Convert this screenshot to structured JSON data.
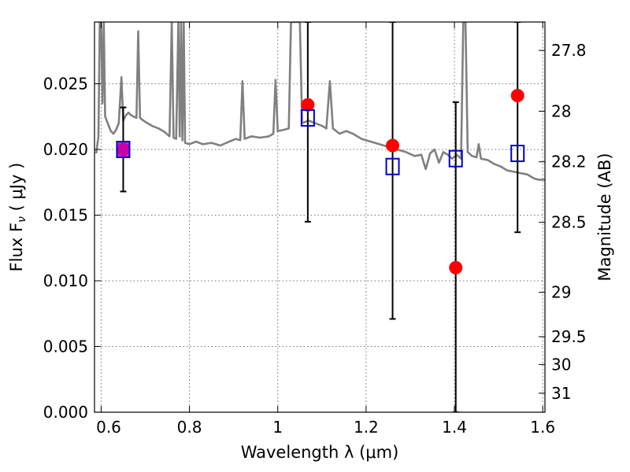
{
  "chart_data": {
    "type": "scatter",
    "xlabel": "Wavelength  λ (μm)",
    "ylabel": "Flux  F",
    "ylabel_sub": "ν",
    "ylabel_unit": "  ( μJy )",
    "y2label": "Magnitude (AB)",
    "xlim": [
      0.585,
      1.605
    ],
    "ylim": [
      0.0,
      0.0297
    ],
    "x_ticks": [
      {
        "value": 0.6,
        "label": ""
      },
      {
        "value": 0.8,
        "label": "0.8"
      },
      {
        "value": 1.0,
        "label": "1"
      },
      {
        "value": 1.2,
        "label": "1.2"
      },
      {
        "value": 1.4,
        "label": "1.4"
      },
      {
        "value": 1.6,
        "label": "1.6"
      }
    ],
    "y_ticks": [
      {
        "value": 0.0,
        "label": "0.000"
      },
      {
        "value": 0.005,
        "label": "0.005"
      },
      {
        "value": 0.01,
        "label": "0.010"
      },
      {
        "value": 0.015,
        "label": "0.015"
      },
      {
        "value": 0.02,
        "label": "0.020"
      },
      {
        "value": 0.025,
        "label": "0.025"
      }
    ],
    "y2_ticks": [
      {
        "flux": 0.02754,
        "label": "27.8"
      },
      {
        "flux": 0.02291,
        "label": "28"
      },
      {
        "flux": 0.01906,
        "label": "28.2"
      },
      {
        "flux": 0.01445,
        "label": "28.5"
      },
      {
        "flux": 0.00912,
        "label": "29"
      },
      {
        "flux": 0.00575,
        "label": "29.5"
      },
      {
        "flux": 0.00363,
        "label": "30"
      },
      {
        "flux": 0.00145,
        "label": "31"
      }
    ],
    "grid": true,
    "series": [
      {
        "kind": "model_spectrum",
        "color": "#808080",
        "points": [
          [
            0.589,
            0.0197
          ],
          [
            0.594,
            0.021
          ],
          [
            0.597,
            0.0297
          ],
          [
            0.6,
            0.0297
          ],
          [
            0.603,
            0.0235
          ],
          [
            0.606,
            0.0297
          ],
          [
            0.609,
            0.0225
          ],
          [
            0.615,
            0.022
          ],
          [
            0.622,
            0.0214
          ],
          [
            0.628,
            0.0212
          ],
          [
            0.634,
            0.0215
          ],
          [
            0.64,
            0.022
          ],
          [
            0.646,
            0.0255
          ],
          [
            0.65,
            0.0222
          ],
          [
            0.656,
            0.0226
          ],
          [
            0.662,
            0.0228
          ],
          [
            0.668,
            0.0226
          ],
          [
            0.674,
            0.0225
          ],
          [
            0.68,
            0.0224
          ],
          [
            0.684,
            0.029
          ],
          [
            0.688,
            0.0224
          ],
          [
            0.7,
            0.0221
          ],
          [
            0.715,
            0.0218
          ],
          [
            0.73,
            0.0216
          ],
          [
            0.745,
            0.0213
          ],
          [
            0.755,
            0.021
          ],
          [
            0.76,
            0.0297
          ],
          [
            0.764,
            0.0209
          ],
          [
            0.77,
            0.0208
          ],
          [
            0.775,
            0.0297
          ],
          [
            0.778,
            0.021
          ],
          [
            0.781,
            0.0297
          ],
          [
            0.784,
            0.0207
          ],
          [
            0.787,
            0.0297
          ],
          [
            0.79,
            0.0205
          ],
          [
            0.8,
            0.0204
          ],
          [
            0.815,
            0.0206
          ],
          [
            0.83,
            0.0204
          ],
          [
            0.85,
            0.0205
          ],
          [
            0.87,
            0.0203
          ],
          [
            0.89,
            0.0206
          ],
          [
            0.905,
            0.0208
          ],
          [
            0.915,
            0.0207
          ],
          [
            0.92,
            0.0252
          ],
          [
            0.925,
            0.0208
          ],
          [
            0.94,
            0.021
          ],
          [
            0.96,
            0.0209
          ],
          [
            0.98,
            0.021
          ],
          [
            0.99,
            0.0212
          ],
          [
            0.995,
            0.0253
          ],
          [
            1.0,
            0.0214
          ],
          [
            1.015,
            0.0215
          ],
          [
            1.025,
            0.0216
          ],
          [
            1.03,
            0.0297
          ],
          [
            1.04,
            0.0297
          ],
          [
            1.05,
            0.0297
          ],
          [
            1.055,
            0.022
          ],
          [
            1.07,
            0.0222
          ],
          [
            1.085,
            0.022
          ],
          [
            1.1,
            0.0218
          ],
          [
            1.11,
            0.0216
          ],
          [
            1.118,
            0.0252
          ],
          [
            1.125,
            0.0216
          ],
          [
            1.14,
            0.0212
          ],
          [
            1.155,
            0.0214
          ],
          [
            1.17,
            0.0212
          ],
          [
            1.19,
            0.0208
          ],
          [
            1.21,
            0.0206
          ],
          [
            1.23,
            0.0204
          ],
          [
            1.25,
            0.0202
          ],
          [
            1.27,
            0.02
          ],
          [
            1.29,
            0.0198
          ],
          [
            1.31,
            0.0195
          ],
          [
            1.325,
            0.0196
          ],
          [
            1.335,
            0.0185
          ],
          [
            1.345,
            0.0197
          ],
          [
            1.355,
            0.02
          ],
          [
            1.365,
            0.019
          ],
          [
            1.375,
            0.0198
          ],
          [
            1.385,
            0.0196
          ],
          [
            1.395,
            0.0193
          ],
          [
            1.405,
            0.0196
          ],
          [
            1.415,
            0.0193
          ],
          [
            1.42,
            0.0297
          ],
          [
            1.425,
            0.0297
          ],
          [
            1.43,
            0.0198
          ],
          [
            1.44,
            0.0195
          ],
          [
            1.45,
            0.0194
          ],
          [
            1.455,
            0.0204
          ],
          [
            1.46,
            0.0193
          ],
          [
            1.475,
            0.0192
          ],
          [
            1.49,
            0.0189
          ],
          [
            1.505,
            0.0187
          ],
          [
            1.52,
            0.0184
          ],
          [
            1.535,
            0.0183
          ],
          [
            1.55,
            0.0182
          ],
          [
            1.565,
            0.0181
          ],
          [
            1.58,
            0.0178
          ],
          [
            1.59,
            0.0177
          ],
          [
            1.605,
            0.0177
          ]
        ]
      },
      {
        "kind": "observed_flux_with_errors",
        "color": "#ff0000",
        "marker": "circle",
        "points": [
          {
            "x": 0.65,
            "y": 0.02,
            "err_lo": 0.0168,
            "err_hi": 0.0232
          },
          {
            "x": 1.068,
            "y": 0.0234,
            "err_lo": 0.0145,
            "err_hi": 0.0297
          },
          {
            "x": 1.26,
            "y": 0.0203,
            "err_lo": 0.0071,
            "err_hi": 0.0297
          },
          {
            "x": 1.403,
            "y": 0.011,
            "err_lo": 0.0,
            "err_hi": 0.0236
          },
          {
            "x": 1.543,
            "y": 0.0241,
            "err_lo": 0.0137,
            "err_hi": 0.0297
          }
        ]
      },
      {
        "kind": "model_band_flux",
        "color": "#0000cc",
        "marker": "square-open",
        "points": [
          {
            "x": 0.65,
            "y": 0.02
          },
          {
            "x": 1.068,
            "y": 0.0224
          },
          {
            "x": 1.26,
            "y": 0.0187
          },
          {
            "x": 1.403,
            "y": 0.0193
          },
          {
            "x": 1.543,
            "y": 0.0197
          }
        ]
      }
    ]
  }
}
